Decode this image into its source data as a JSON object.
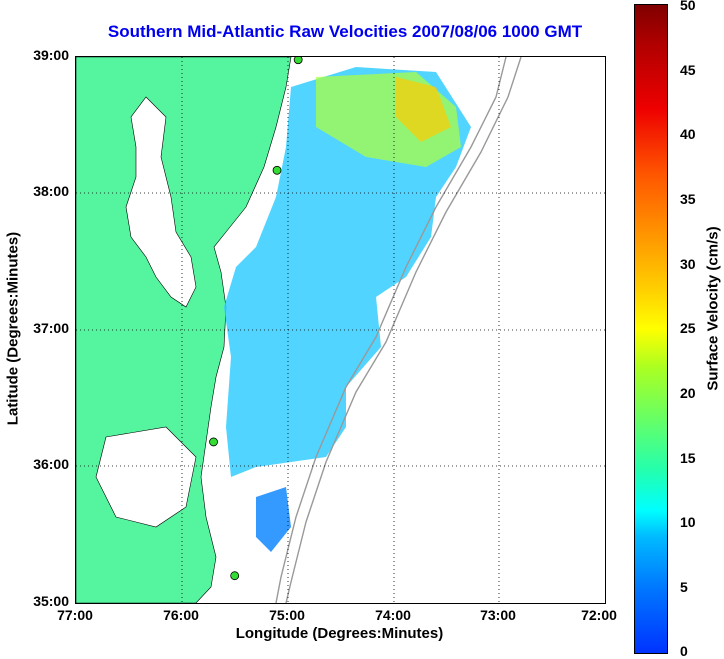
{
  "title": "Southern Mid-Atlantic Raw Velocities 2007/08/06 1000 GMT",
  "x_axis": {
    "label": "Longitude (Degrees:Minutes)",
    "ticks": [
      "77:00",
      "76:00",
      "75:00",
      "74:00",
      "73:00",
      "72:00"
    ]
  },
  "y_axis": {
    "label": "Latitude (Degrees:Minutes)",
    "ticks": [
      "39:00",
      "38:00",
      "37:00",
      "36:00",
      "35:00"
    ]
  },
  "colorbar": {
    "label": "Surface Velocity (cm/s)",
    "ticks": [
      "50",
      "45",
      "40",
      "35",
      "30",
      "25",
      "20",
      "15",
      "10",
      "5",
      "0"
    ],
    "min": 0,
    "max": 50
  },
  "colors": {
    "title": "#0000ee",
    "land": "#55f5a0",
    "grid": "#000000",
    "station": "#33dd33"
  },
  "stations": [
    {
      "lon": -74.9,
      "lat": 38.98
    },
    {
      "lon": -75.1,
      "lat": 38.17
    },
    {
      "lon": -75.7,
      "lat": 36.18
    },
    {
      "lon": -75.5,
      "lat": 35.2
    }
  ]
}
